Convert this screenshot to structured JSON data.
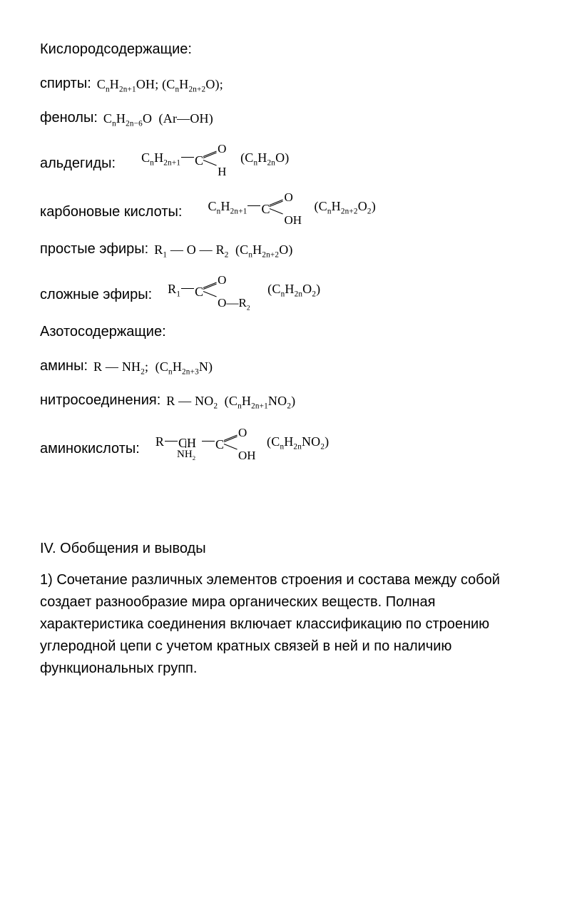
{
  "section1_title": "Кислородсодержащие:",
  "alcohols": {
    "label": "спирты:",
    "formula_html": "C<sub>n</sub>H<sub>2n+1</sub>OH; (C<sub>n</sub>H<sub>2n+2</sub>O);"
  },
  "phenols": {
    "label": "фенолы:",
    "formula_html": "C<sub>n</sub>H<sub>2n−6</sub>O&nbsp;&nbsp;(Ar—OH)"
  },
  "aldehydes": {
    "label": "альдегиды:",
    "prefix_html": "C<sub>n</sub>H<sub>2n+1</sub>",
    "top": "O",
    "bottom": "H",
    "paren_html": "(C<sub>n</sub>H<sub>2n</sub>O)"
  },
  "carboxylic": {
    "label": "карбоновые кислоты:",
    "prefix_html": "C<sub>n</sub>H<sub>2n+1</sub>",
    "top": "O",
    "bottom": "OH",
    "paren_html": "(C<sub>n</sub>H<sub>2n+2</sub>O<sub>2</sub>)"
  },
  "ethers": {
    "label": "простые эфиры:",
    "formula_html": "R<sub>1</sub> — O — R<sub>2</sub>&nbsp;&nbsp;(C<sub>n</sub>H<sub>2n+2</sub>O)"
  },
  "esters": {
    "label": "сложные эфиры:",
    "prefix_html": "R<sub>1</sub>",
    "top": "O",
    "bottom_html": "O—R<sub class='subsmall'>2</sub>",
    "paren_html": "(C<sub>n</sub>H<sub>2n</sub>O<sub>2</sub>)"
  },
  "section2_title": "Азотосодержащие:",
  "amines": {
    "label": "амины:",
    "formula_html": "R — NH<sub>2</sub>;&nbsp;&nbsp;(C<sub>n</sub>H<sub>2n+3</sub>N)"
  },
  "nitro": {
    "label": "нитросоединения:",
    "formula_html": "R — NO<sub>2</sub>&nbsp;&nbsp;(C<sub>n</sub>H<sub>2n+1</sub>NO<sub>2</sub>)"
  },
  "aminoacids": {
    "label": "аминокислоты:",
    "r_label": "R",
    "ch_label": "CH",
    "nh2_html": "NH<sub class='subsmall'>2</sub>",
    "top": "O",
    "bottom": "OH",
    "paren_html": "(C<sub>n</sub>H<sub>2n</sub>NO<sub>2</sub>)"
  },
  "part4_heading": "IV. Обобщения и выводы",
  "para1": "1) Сочетание различных элементов строения и состава между собой создает разнообразие мира органических веществ. Полная характеристика соединения включает классификацию по строению углеродной цепи с учетом кратных связей в ней и по наличию функциональных групп."
}
